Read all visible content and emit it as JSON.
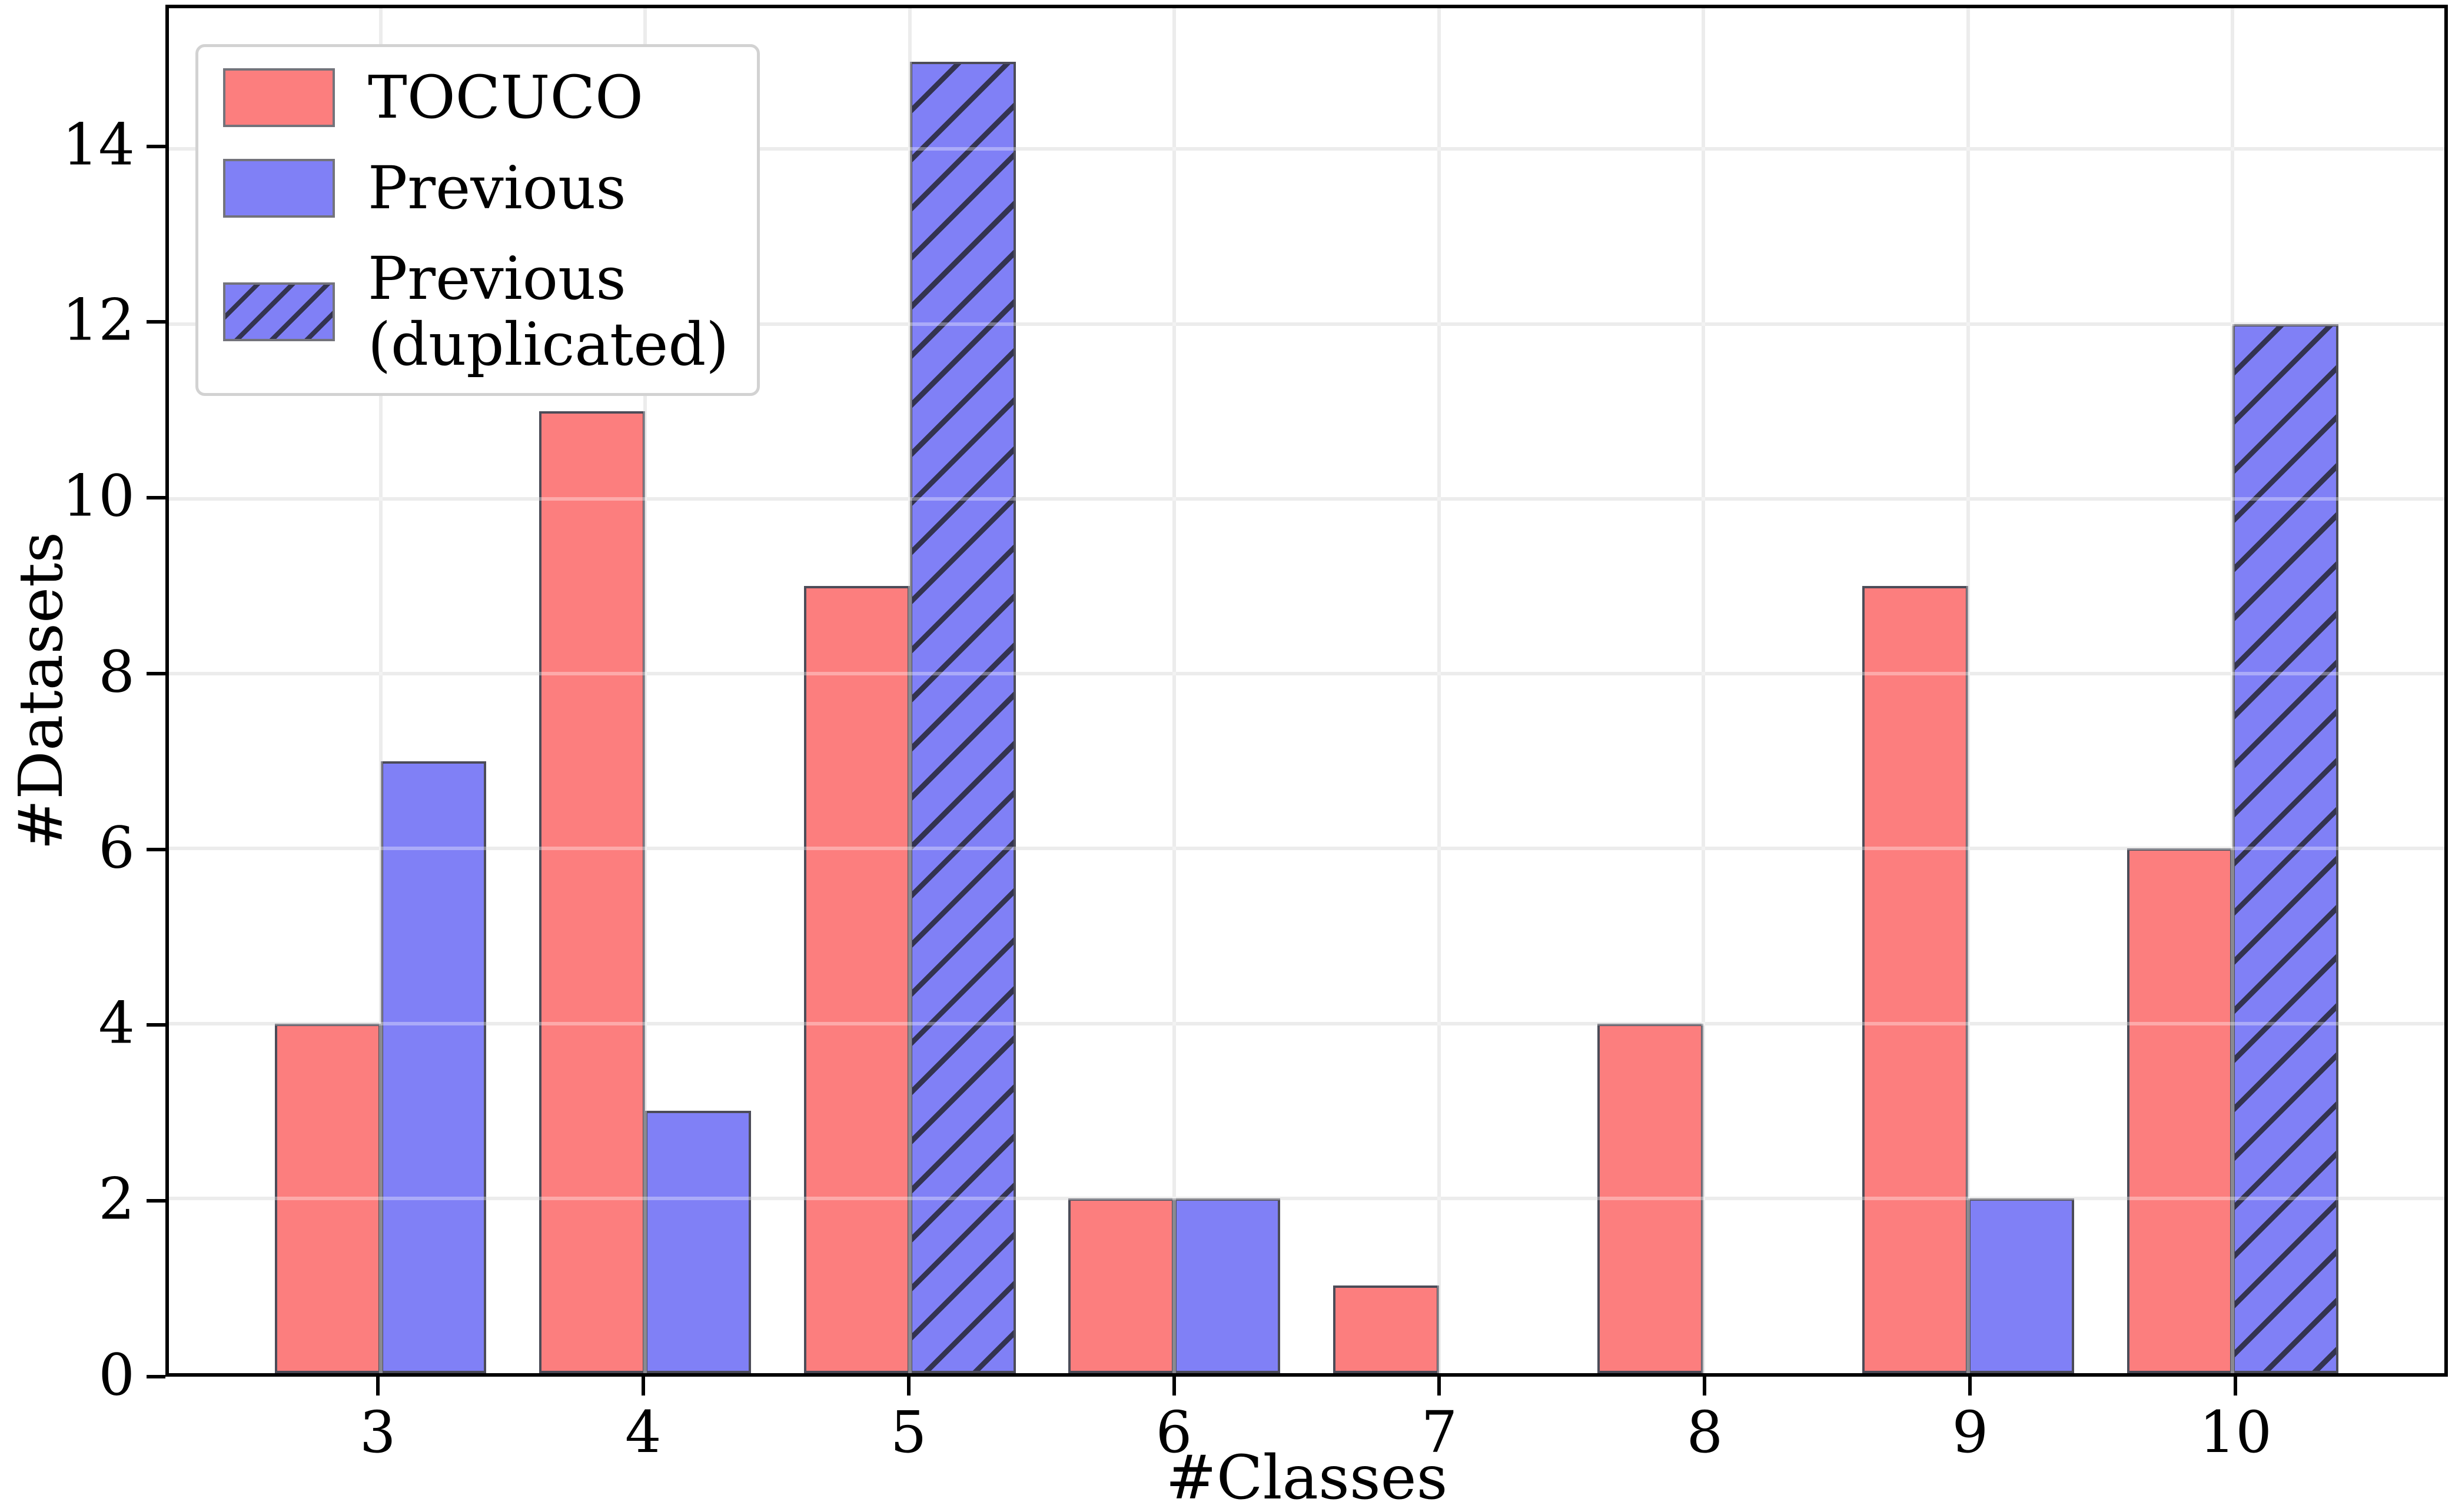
{
  "colors": {
    "tocuco_red": "#fc7e7e",
    "previous_blue": "#8080f6",
    "bar_edge": "#4c4c58",
    "hatch_line": "#333350",
    "gridline": "#e3e3e3",
    "spine": "#000000",
    "legend_border": "#d2d2d2",
    "text": "#000000",
    "background": "#ffffff"
  },
  "chart_data": {
    "type": "bar",
    "title": "",
    "xlabel": "#Classes",
    "ylabel": "#Datasets",
    "categories": [
      3,
      4,
      5,
      6,
      7,
      8,
      9,
      10
    ],
    "series": [
      {
        "name": "TOCUCO",
        "style": "red",
        "slot": 0,
        "values": [
          4,
          11,
          9,
          2,
          1,
          4,
          9,
          6
        ]
      },
      {
        "name": "Previous",
        "style": "blue",
        "slot": 1,
        "values": [
          7,
          3,
          null,
          2,
          null,
          null,
          2,
          null
        ]
      },
      {
        "name": "Previous (duplicated)",
        "style": "blue_hatched",
        "slot": 1,
        "values": [
          null,
          null,
          15,
          null,
          null,
          null,
          null,
          12
        ]
      }
    ],
    "bar_width": 0.4,
    "xlim": [
      2.2,
      10.8
    ],
    "ylim": [
      0,
      15.61
    ],
    "xticks": [
      3,
      4,
      5,
      6,
      7,
      8,
      9,
      10
    ],
    "yticks": [
      0,
      2,
      4,
      6,
      8,
      10,
      12,
      14
    ],
    "grid": true,
    "legend_position": "upper left"
  },
  "legend": {
    "entries": [
      {
        "label": "TOCUCO",
        "swatch": "red"
      },
      {
        "label": "Previous",
        "swatch": "blue"
      },
      {
        "label": "Previous\n(duplicated)",
        "swatch": "blue_hatched"
      }
    ]
  }
}
